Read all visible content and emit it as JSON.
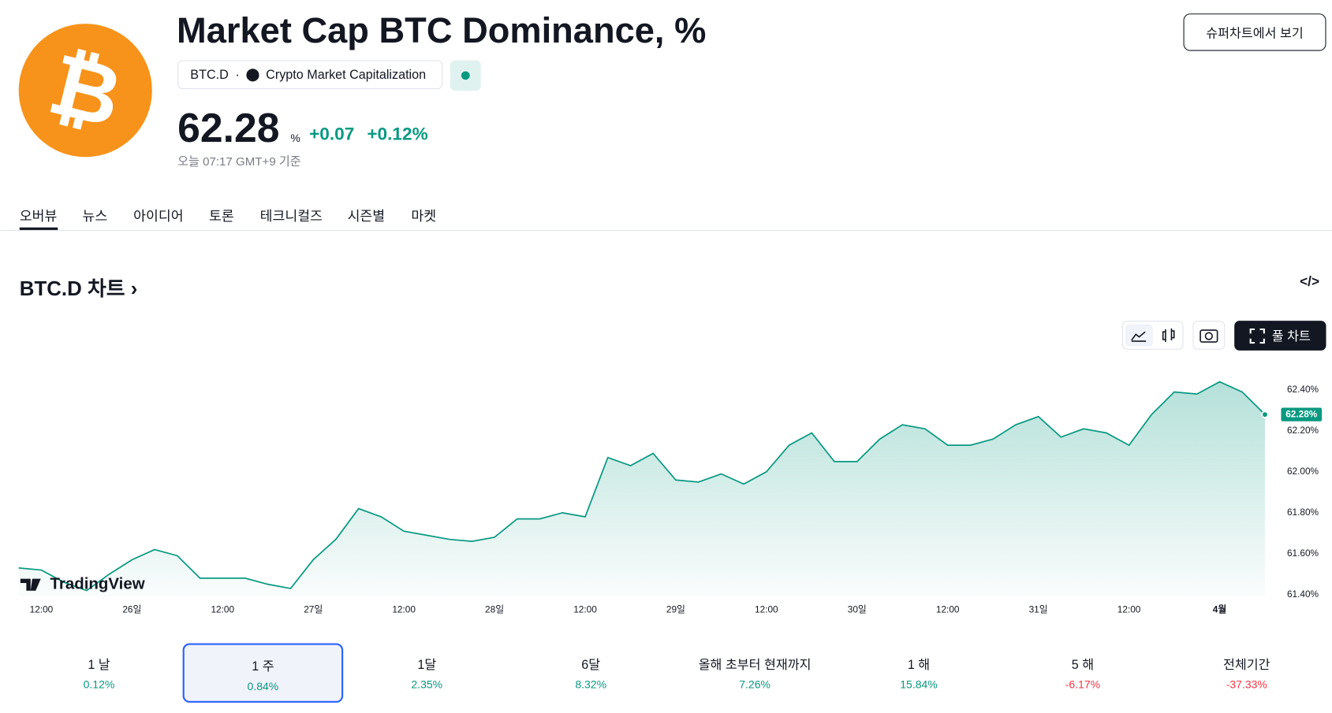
{
  "header": {
    "logo": "₿",
    "title": "Market Cap BTC Dominance, %",
    "ticker": "BTC.D",
    "source": "Crypto Market Capitalization",
    "price": "62.28",
    "unit": "%",
    "change": "+0.07",
    "change_pct": "+0.12%",
    "as_of": "오늘 07:17 GMT+9 기준",
    "super_chart_button": "슈퍼차트에서 보기"
  },
  "tabs": [
    "오버뷰",
    "뉴스",
    "아이디어",
    "토론",
    "테크니컬즈",
    "시즌별",
    "마켓"
  ],
  "section_title": "BTC.D 차트 ›",
  "embed_icon": "</>",
  "full_chart_button": "풀 차트",
  "chart_data": {
    "type": "line",
    "watermark": "TradingView",
    "categories": [
      null,
      "12:00",
      null,
      null,
      null,
      "26일",
      null,
      null,
      null,
      "12:00",
      null,
      null,
      null,
      "27일",
      null,
      null,
      null,
      "12:00",
      null,
      null,
      null,
      "28일",
      null,
      null,
      null,
      "12:00",
      null,
      null,
      null,
      "29일",
      null,
      null,
      null,
      "12:00",
      null,
      null,
      null,
      "30일",
      null,
      null,
      null,
      "12:00",
      null,
      null,
      null,
      "31일",
      null,
      null,
      null,
      "12:00",
      null,
      null,
      null,
      "4월",
      null,
      null
    ],
    "series": [
      {
        "name": "BTC.D",
        "color": "#089981",
        "values": [
          61.53,
          61.52,
          61.46,
          61.42,
          61.5,
          61.57,
          61.62,
          61.59,
          61.48,
          61.48,
          61.48,
          61.45,
          61.43,
          61.57,
          61.67,
          61.82,
          61.78,
          61.71,
          61.69,
          61.67,
          61.66,
          61.68,
          61.77,
          61.77,
          61.8,
          61.78,
          62.07,
          62.03,
          62.09,
          61.96,
          61.95,
          61.99,
          61.94,
          62.0,
          62.13,
          62.19,
          62.05,
          62.05,
          62.16,
          62.23,
          62.21,
          62.13,
          62.13,
          62.16,
          62.23,
          62.27,
          62.17,
          62.21,
          62.19,
          62.13,
          62.28,
          62.39,
          62.38,
          62.44,
          62.39,
          62.28
        ]
      }
    ],
    "last_price": {
      "value": 62.28,
      "label": "62.28%"
    },
    "ylim": [
      61.39,
      62.51
    ],
    "yticks": [
      {
        "value": 61.4,
        "label": "61.40%"
      },
      {
        "value": 61.6,
        "label": "61.60%"
      },
      {
        "value": 61.8,
        "label": "61.80%"
      },
      {
        "value": 62.0,
        "label": "62.00%"
      },
      {
        "value": 62.2,
        "label": "62.20%"
      },
      {
        "value": 62.4,
        "label": "62.40%"
      }
    ],
    "grid": false
  },
  "performance": [
    {
      "period": "1 날",
      "value": "0.12%"
    },
    {
      "period": "1 주",
      "value": "0.84%"
    },
    {
      "period": "1달",
      "value": "2.35%"
    },
    {
      "period": "6달",
      "value": "8.32%"
    },
    {
      "period": "올해 초부터 현재까지",
      "value": "7.26%"
    },
    {
      "period": "1 해",
      "value": "15.84%"
    },
    {
      "period": "5 해",
      "value": "-6.17%"
    },
    {
      "period": "전체기간",
      "value": "-37.33%"
    }
  ]
}
